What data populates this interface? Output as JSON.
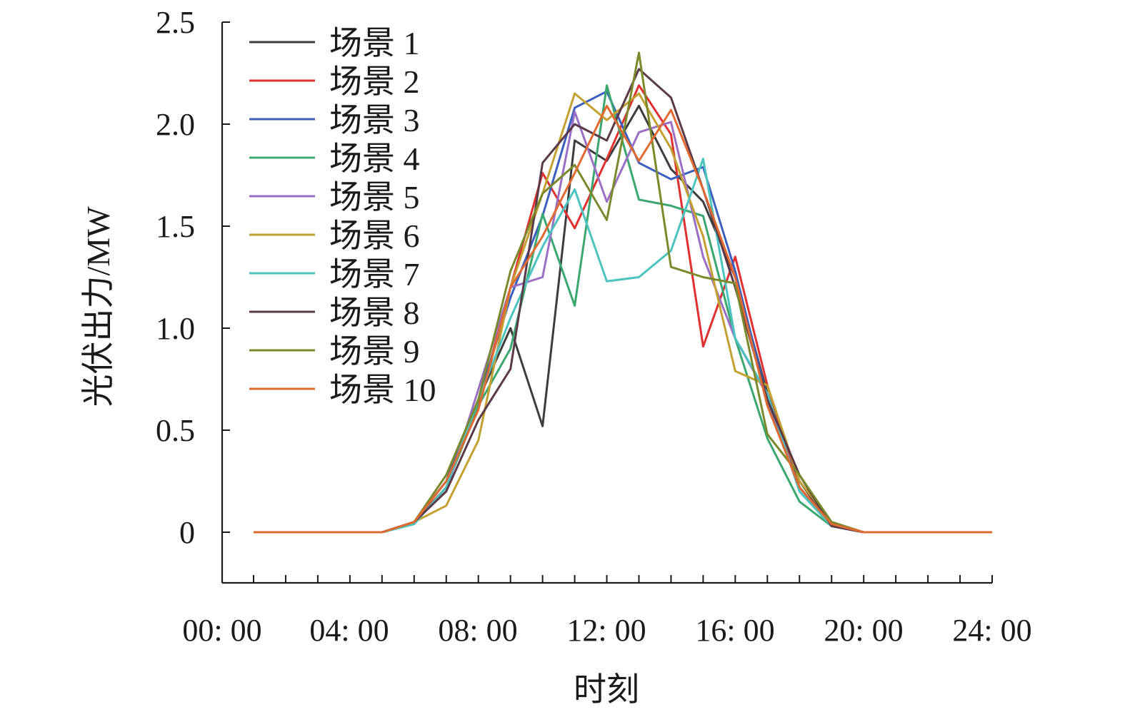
{
  "chart_data": {
    "type": "line",
    "title": "",
    "xlabel": "时刻",
    "ylabel": "光伏出力/MW",
    "x": [
      0,
      1,
      2,
      3,
      4,
      5,
      6,
      7,
      8,
      9,
      10,
      11,
      12,
      13,
      14,
      15,
      16,
      17,
      18,
      19,
      20,
      21,
      22,
      23
    ],
    "xlim": [
      0,
      24
    ],
    "ylim": [
      -0.25,
      2.5
    ],
    "x_tick_labels": [
      "00: 00",
      "04: 00",
      "08: 00",
      "12: 00",
      "16: 00",
      "20: 00",
      "24: 00"
    ],
    "x_tick_values": [
      0,
      4,
      8,
      12,
      16,
      20,
      24
    ],
    "y_tick_labels": [
      "0",
      "0.5",
      "1.0",
      "1.5",
      "2.0",
      "2.5"
    ],
    "y_tick_values": [
      0,
      0.5,
      1.0,
      1.5,
      2.0,
      2.5
    ],
    "grid": false,
    "legend": "top-left",
    "series": [
      {
        "name": "场景 1",
        "color": "#3d3d3d",
        "values": [
          0,
          0,
          0,
          0,
          0,
          0.05,
          0.25,
          0.65,
          1.0,
          0.52,
          1.92,
          1.82,
          2.09,
          1.78,
          1.62,
          1.25,
          0.68,
          0.25,
          0.03,
          0,
          0,
          0,
          0,
          0
        ]
      },
      {
        "name": "场景 2",
        "color": "#e03030",
        "values": [
          0,
          0,
          0,
          0,
          0,
          0.05,
          0.22,
          0.62,
          1.2,
          1.76,
          1.49,
          1.83,
          2.19,
          1.95,
          0.91,
          1.35,
          0.72,
          0.22,
          0.03,
          0,
          0,
          0,
          0,
          0
        ]
      },
      {
        "name": "场景 3",
        "color": "#3a5fbf",
        "values": [
          0,
          0,
          0,
          0,
          0,
          0.05,
          0.25,
          0.65,
          1.15,
          1.55,
          2.08,
          2.16,
          1.81,
          1.73,
          1.79,
          1.28,
          0.65,
          0.22,
          0.04,
          0,
          0,
          0,
          0,
          0
        ]
      },
      {
        "name": "场景 4",
        "color": "#3aa86e",
        "values": [
          0,
          0,
          0,
          0,
          0,
          0.04,
          0.22,
          0.62,
          0.9,
          1.56,
          1.11,
          2.19,
          1.63,
          1.6,
          1.55,
          0.95,
          0.46,
          0.15,
          0.03,
          0,
          0,
          0,
          0,
          0
        ]
      },
      {
        "name": "场景 5",
        "color": "#9a6fc4",
        "values": [
          0,
          0,
          0,
          0,
          0,
          0.05,
          0.2,
          0.7,
          1.2,
          1.25,
          2.06,
          1.62,
          1.96,
          2.01,
          1.35,
          0.95,
          0.67,
          0.2,
          0.03,
          0,
          0,
          0,
          0,
          0
        ]
      },
      {
        "name": "场景 6",
        "color": "#c4a030",
        "values": [
          0,
          0,
          0,
          0,
          0,
          0.05,
          0.13,
          0.45,
          1.2,
          1.66,
          2.15,
          2.02,
          2.15,
          1.88,
          1.45,
          0.79,
          0.72,
          0.25,
          0.05,
          0,
          0,
          0,
          0,
          0
        ]
      },
      {
        "name": "场景 7",
        "color": "#4bc4c0",
        "values": [
          0,
          0,
          0,
          0,
          0,
          0.04,
          0.22,
          0.65,
          1.05,
          1.4,
          1.68,
          1.23,
          1.25,
          1.38,
          1.83,
          0.95,
          0.68,
          0.2,
          0.03,
          0,
          0,
          0,
          0,
          0
        ]
      },
      {
        "name": "场景 8",
        "color": "#5a3a48",
        "values": [
          0,
          0,
          0,
          0,
          0,
          0.05,
          0.2,
          0.55,
          0.8,
          1.81,
          2.0,
          1.92,
          2.27,
          2.13,
          1.68,
          1.2,
          0.65,
          0.28,
          0.03,
          0,
          0,
          0,
          0,
          0
        ]
      },
      {
        "name": "场景 9",
        "color": "#7a8a2a",
        "values": [
          0,
          0,
          0,
          0,
          0,
          0.05,
          0.28,
          0.65,
          1.28,
          1.66,
          1.8,
          1.53,
          2.35,
          1.3,
          1.25,
          1.22,
          0.48,
          0.28,
          0.05,
          0,
          0,
          0,
          0,
          0
        ]
      },
      {
        "name": "场景 10",
        "color": "#e06a30",
        "values": [
          0,
          0,
          0,
          0,
          0,
          0.05,
          0.25,
          0.6,
          1.2,
          1.45,
          1.76,
          2.09,
          1.82,
          2.07,
          1.68,
          1.25,
          0.62,
          0.22,
          0.04,
          0,
          0,
          0,
          0,
          0
        ]
      }
    ]
  }
}
